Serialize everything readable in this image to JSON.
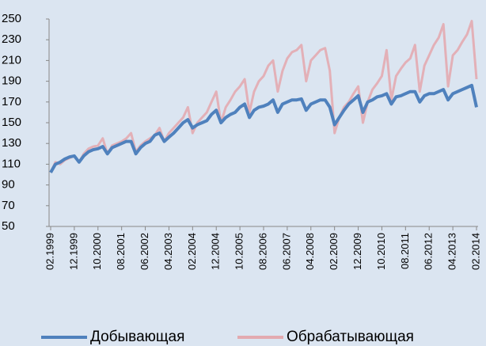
{
  "chart_data": {
    "type": "line",
    "categories": [
      "02.1999",
      null,
      null,
      null,
      null,
      "12.1999",
      null,
      null,
      null,
      null,
      "10.2000",
      null,
      null,
      null,
      null,
      "08.2001",
      null,
      null,
      null,
      null,
      "06.2002",
      null,
      null,
      null,
      null,
      "04.2003",
      null,
      null,
      null,
      null,
      "02.2004",
      null,
      null,
      null,
      null,
      "12.2004",
      null,
      null,
      null,
      null,
      "10.2005",
      null,
      null,
      null,
      null,
      "08.2006",
      null,
      null,
      null,
      null,
      "06.2007",
      null,
      null,
      null,
      null,
      "04.2008",
      null,
      null,
      null,
      null,
      "02.2009",
      null,
      null,
      null,
      null,
      "12.2009",
      null,
      null,
      null,
      null,
      "10.2010",
      null,
      null,
      null,
      null,
      "08.2011",
      null,
      null,
      null,
      null,
      "06.2012",
      null,
      null,
      null,
      null,
      "04.2013",
      null,
      null,
      null,
      null,
      "02.2014"
    ],
    "series": [
      {
        "name": "Добывающая",
        "color": "#4f81bd",
        "values": [
          102,
          110,
          112,
          115,
          117,
          118,
          112,
          118,
          122,
          124,
          125,
          127,
          120,
          126,
          128,
          130,
          132,
          132,
          120,
          126,
          130,
          132,
          138,
          140,
          132,
          136,
          140,
          145,
          150,
          153,
          145,
          148,
          150,
          152,
          158,
          162,
          150,
          155,
          158,
          160,
          165,
          168,
          155,
          162,
          165,
          166,
          168,
          172,
          160,
          168,
          170,
          172,
          172,
          173,
          162,
          168,
          170,
          172,
          172,
          165,
          148,
          155,
          162,
          168,
          172,
          176,
          160,
          170,
          172,
          175,
          176,
          178,
          168,
          175,
          176,
          178,
          180,
          180,
          170,
          176,
          178,
          178,
          180,
          182,
          172,
          178,
          180,
          182,
          184,
          186,
          165
        ]
      },
      {
        "name": "Обрабатывающая",
        "color": "#e3aab0",
        "values": [
          102,
          112,
          110,
          114,
          116,
          118,
          112,
          120,
          125,
          127,
          128,
          135,
          120,
          128,
          130,
          132,
          135,
          140,
          122,
          128,
          132,
          135,
          138,
          145,
          132,
          140,
          145,
          150,
          155,
          165,
          140,
          150,
          155,
          160,
          170,
          180,
          150,
          165,
          172,
          180,
          185,
          192,
          160,
          180,
          190,
          195,
          205,
          210,
          180,
          200,
          212,
          218,
          220,
          225,
          190,
          210,
          215,
          220,
          222,
          200,
          140,
          155,
          165,
          170,
          178,
          185,
          150,
          170,
          182,
          188,
          195,
          220,
          172,
          195,
          202,
          208,
          212,
          225,
          180,
          205,
          215,
          225,
          232,
          245,
          185,
          215,
          220,
          228,
          235,
          248,
          192
        ]
      }
    ],
    "ylim": [
      50,
      250
    ],
    "yticks": [
      50,
      70,
      90,
      110,
      130,
      150,
      170,
      190,
      210,
      230,
      250
    ],
    "grid": false,
    "legend": "bottom"
  }
}
